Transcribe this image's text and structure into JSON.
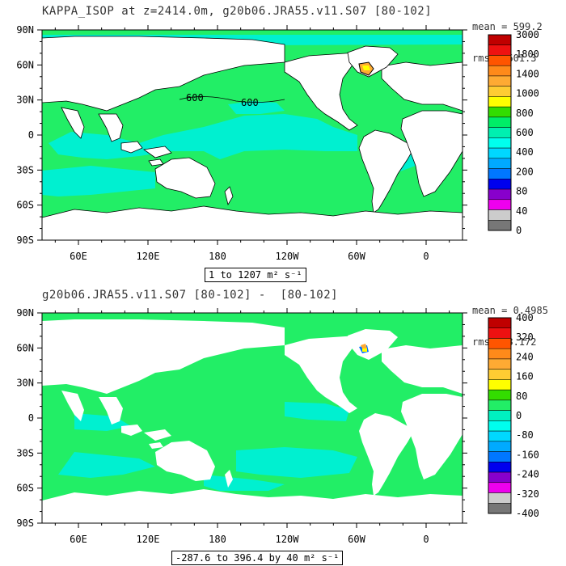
{
  "panels": [
    {
      "title": "KAPPA_ISOP at z=2414.0m, g20b06.JRA55.v11.S07 [80-102]",
      "stats": [
        "mean = 599.2",
        "rms = 601.3"
      ],
      "range": "1 to 1207 m² s⁻¹",
      "contour_label": "600",
      "lat_labels": [
        "90N",
        "60N",
        "30N",
        "0",
        "30S",
        "60S",
        "90S"
      ],
      "lon_labels": [
        "60E",
        "120E",
        "180",
        "120W",
        "60W",
        "0"
      ],
      "colorbar": {
        "labels": [
          "3000",
          "1800",
          "1400",
          "1000",
          "800",
          "600",
          "400",
          "200",
          "80",
          "40",
          "0"
        ],
        "colors": [
          "#c00000",
          "#ee1111",
          "#ff5500",
          "#ff8a1a",
          "#ffaa33",
          "#ffcc33",
          "#ffff00",
          "#33dd00",
          "#00ee66",
          "#00f0b0",
          "#00ffee",
          "#00d8ff",
          "#00aaff",
          "#0077ff",
          "#0000ee",
          "#8800cc",
          "#ee00ee",
          "#cccccc",
          "#777777"
        ]
      },
      "ocean_color": "#22ee66",
      "low_color": "#00f0d0"
    },
    {
      "title": "g20b06.JRA55.v11.S07 [80-102] -  [80-102]",
      "stats": [
        "mean = 0.4985",
        "rms = 8.172"
      ],
      "range": "-287.6 to 396.4 by 40 m² s⁻¹",
      "lat_labels": [
        "90N",
        "60N",
        "30N",
        "0",
        "30S",
        "60S",
        "90S"
      ],
      "lon_labels": [
        "60E",
        "120E",
        "180",
        "120W",
        "60W",
        "0"
      ],
      "colorbar": {
        "labels": [
          "400",
          "320",
          "240",
          "160",
          "80",
          "0",
          "-80",
          "-160",
          "-240",
          "-320",
          "-400"
        ],
        "colors": [
          "#c00000",
          "#ee1111",
          "#ff5500",
          "#ff8a1a",
          "#ffaa33",
          "#ffcc33",
          "#ffff00",
          "#33dd00",
          "#22ee66",
          "#00f0c0",
          "#00ffee",
          "#00d8ff",
          "#00aaff",
          "#0077ff",
          "#0000ee",
          "#8800cc",
          "#ee00ee",
          "#cccccc",
          "#777777"
        ]
      },
      "ocean_color": "#22ee66",
      "low_color": "#00f0d0"
    }
  ]
}
